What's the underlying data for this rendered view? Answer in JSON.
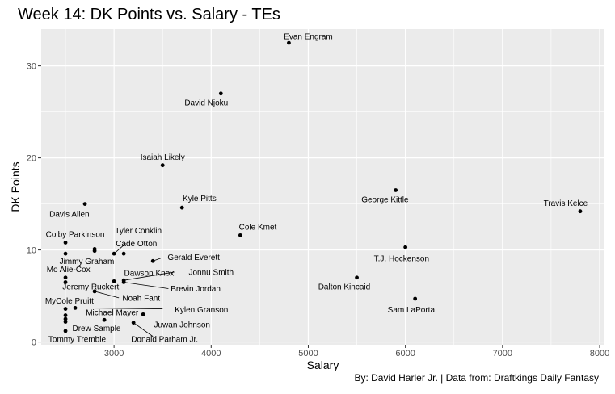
{
  "chart_data": {
    "type": "scatter",
    "title": "Week 14: DK Points vs. Salary - TEs",
    "xlabel": "Salary",
    "ylabel": "DK Points",
    "caption": "By: David Harler Jr. | Data from: Draftkings Daily Fantasy",
    "xlim": [
      2250,
      8050
    ],
    "ylim": [
      -0.3,
      34
    ],
    "xticks": [
      3000,
      4000,
      5000,
      6000,
      7000,
      8000
    ],
    "yticks": [
      0,
      10,
      20,
      30
    ],
    "grid": true,
    "points": [
      {
        "name": "Evan Engram",
        "x": 4800,
        "y": 32.5
      },
      {
        "name": "David Njoku",
        "x": 4100,
        "y": 27.0
      },
      {
        "name": "Isaiah Likely",
        "x": 3500,
        "y": 19.2
      },
      {
        "name": "George Kittle",
        "x": 5900,
        "y": 16.5
      },
      {
        "name": "Davis Allen",
        "x": 2700,
        "y": 15.0
      },
      {
        "name": "Kyle Pitts",
        "x": 3700,
        "y": 14.6
      },
      {
        "name": "Travis Kelce",
        "x": 7800,
        "y": 14.2
      },
      {
        "name": "Cole Kmet",
        "x": 4300,
        "y": 11.6
      },
      {
        "name": "Colby Parkinson",
        "x": 2500,
        "y": 10.8
      },
      {
        "name": "T.J. Hockenson",
        "x": 6000,
        "y": 10.3
      },
      {
        "name": "Jimmy Graham",
        "x": 2800,
        "y": 10.1
      },
      {
        "name": "Cade Otton",
        "x": 2800,
        "y": 9.9
      },
      {
        "name": "Tyler Conklin",
        "x": 3100,
        "y": 9.6
      },
      {
        "name": "Cade Otton",
        "x": 3000,
        "y": 9.6
      },
      {
        "name": "Mo Alie-Cox",
        "x": 2500,
        "y": 9.6
      },
      {
        "name": "Gerald Everett",
        "x": 3400,
        "y": 8.8
      },
      {
        "name": "Dalton Kincaid",
        "x": 5500,
        "y": 7.0
      },
      {
        "name": "Jeremy Ruckert",
        "x": 2500,
        "y": 7.0
      },
      {
        "name": "Dawson Knox",
        "x": 3000,
        "y": 6.6
      },
      {
        "name": "Jonnu Smith",
        "x": 3100,
        "y": 6.7
      },
      {
        "name": "Brevin Jordan",
        "x": 3100,
        "y": 6.5
      },
      {
        "name": "Mo Alie-Cox",
        "x": 2500,
        "y": 6.5
      },
      {
        "name": "Noah Fant",
        "x": 2800,
        "y": 5.5
      },
      {
        "name": "Sam LaPorta",
        "x": 6100,
        "y": 4.7
      },
      {
        "name": "MyCole Pruitt",
        "x": 2500,
        "y": 3.6
      },
      {
        "name": "Kylen Granson",
        "x": 2600,
        "y": 3.7
      },
      {
        "name": "Michael Mayer",
        "x": 3300,
        "y": 3.0
      },
      {
        "name": "Drew Sample",
        "x": 2500,
        "y": 2.9
      },
      {
        "name": "Drew Sample",
        "x": 2500,
        "y": 2.5
      },
      {
        "name": "Michael Mayer",
        "x": 2900,
        "y": 2.4
      },
      {
        "name": "Drew Sample",
        "x": 2500,
        "y": 2.2
      },
      {
        "name": "Juwan Johnson",
        "x": 3200,
        "y": 2.1
      },
      {
        "name": "Tommy Tremble",
        "x": 2500,
        "y": 1.2
      }
    ],
    "labels": [
      {
        "text": "Evan Engram",
        "x": 5000,
        "y": 33.2
      },
      {
        "text": "David Njoku",
        "x": 3950,
        "y": 26.0
      },
      {
        "text": "Isaiah Likely",
        "x": 3500,
        "y": 20.1
      },
      {
        "text": "George Kittle",
        "x": 5790,
        "y": 15.5
      },
      {
        "text": "Davis Allen",
        "x": 2540,
        "y": 13.9
      },
      {
        "text": "Kyle Pitts",
        "x": 3880,
        "y": 15.6
      },
      {
        "text": "Travis Kelce",
        "x": 7650,
        "y": 15.1
      },
      {
        "text": "Cole Kmet",
        "x": 4480,
        "y": 12.5
      },
      {
        "text": "Colby Parkinson",
        "x": 2600,
        "y": 11.7
      },
      {
        "text": "T.J. Hockenson",
        "x": 5960,
        "y": 9.1
      },
      {
        "text": "Jimmy Graham",
        "x": 2720,
        "y": 8.8
      },
      {
        "text": "Tyler Conklin",
        "x": 3250,
        "y": 12.1
      },
      {
        "text": "Cade Otton",
        "x": 3230,
        "y": 10.7
      },
      {
        "text": "Mo Alie-Cox",
        "x": 2530,
        "y": 7.9
      },
      {
        "text": "Gerald Everett",
        "x": 3820,
        "y": 9.2
      },
      {
        "text": "Dawson Knox",
        "x": 3360,
        "y": 7.5
      },
      {
        "text": "Jonnu Smith",
        "x": 4000,
        "y": 7.6
      },
      {
        "text": "Dalton Kincaid",
        "x": 5370,
        "y": 6.0
      },
      {
        "text": "Jeremy Ruckert",
        "x": 2760,
        "y": 6.0
      },
      {
        "text": "Brevin Jordan",
        "x": 3840,
        "y": 5.8
      },
      {
        "text": "Noah Fant",
        "x": 3280,
        "y": 4.8
      },
      {
        "text": "Sam LaPorta",
        "x": 6060,
        "y": 3.5
      },
      {
        "text": "MyCole Pruitt",
        "x": 2540,
        "y": 4.5
      },
      {
        "text": "Kylen Granson",
        "x": 3900,
        "y": 3.5
      },
      {
        "text": "Michael Mayer",
        "x": 2980,
        "y": 3.2
      },
      {
        "text": "Drew Sample",
        "x": 2820,
        "y": 1.5
      },
      {
        "text": "Juwan Johnson",
        "x": 3700,
        "y": 1.9
      },
      {
        "text": "Tommy Tremble",
        "x": 2620,
        "y": 0.3
      },
      {
        "text": "Donald Parham Jr.",
        "x": 3520,
        "y": 0.3
      }
    ],
    "connectors": [
      [
        3000,
        9.6,
        3120,
        10.7
      ],
      [
        3400,
        8.8,
        3480,
        9.1
      ],
      [
        3100,
        6.7,
        3620,
        7.6
      ],
      [
        3100,
        6.5,
        3560,
        5.8
      ],
      [
        2800,
        5.5,
        3050,
        4.8
      ],
      [
        2600,
        3.7,
        3500,
        3.6
      ],
      [
        3200,
        2.1,
        3400,
        0.6
      ]
    ]
  }
}
